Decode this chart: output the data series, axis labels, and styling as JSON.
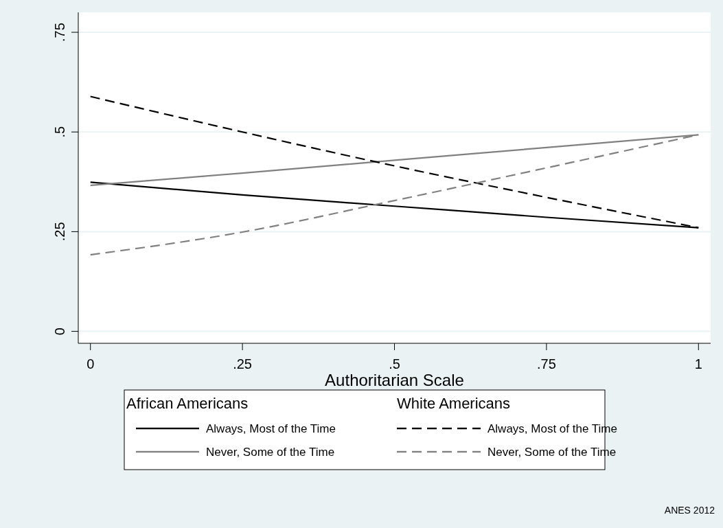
{
  "chart_data": {
    "type": "line",
    "xlabel": "Authoritarian Scale",
    "x": [
      0,
      0.25,
      0.5,
      0.75,
      1
    ],
    "series": [
      {
        "name": "Always, Most of the Time",
        "color": "#000000",
        "line_style": "solid",
        "values": [
          0.374,
          0.342,
          0.314,
          0.286,
          0.26
        ]
      },
      {
        "name": "Never, Some of the Time",
        "color": "#808080",
        "line_style": "solid",
        "values": [
          0.366,
          0.397,
          0.429,
          0.461,
          0.493
        ]
      },
      {
        "name": "Always, Most of the Time",
        "color": "#000000",
        "line_style": "dashed",
        "values": [
          0.589,
          0.5,
          0.415,
          0.336,
          0.26
        ]
      },
      {
        "name": "Never, Some of the Time",
        "color": "#808080",
        "line_style": "dashed",
        "values": [
          0.192,
          0.249,
          0.328,
          0.41,
          0.493
        ]
      }
    ],
    "xlim": [
      -0.02,
      1.02
    ],
    "ylim": [
      -0.03,
      0.8
    ],
    "xticks": [
      0,
      {
        "value": 0.25,
        "label": ".25"
      },
      {
        "value": 0.5,
        "label": ".5"
      },
      {
        "value": 0.75,
        "label": ".75"
      },
      1
    ],
    "yticks": [
      0,
      {
        "value": 0.25,
        "label": ".25"
      },
      {
        "value": 0.5,
        "label": ".5"
      },
      {
        "value": 0.75,
        "label": ".75"
      }
    ],
    "grid": "y",
    "legend": "bottom",
    "annotations": [
      "African Americans",
      "White Americans",
      "ANES 2012"
    ]
  }
}
